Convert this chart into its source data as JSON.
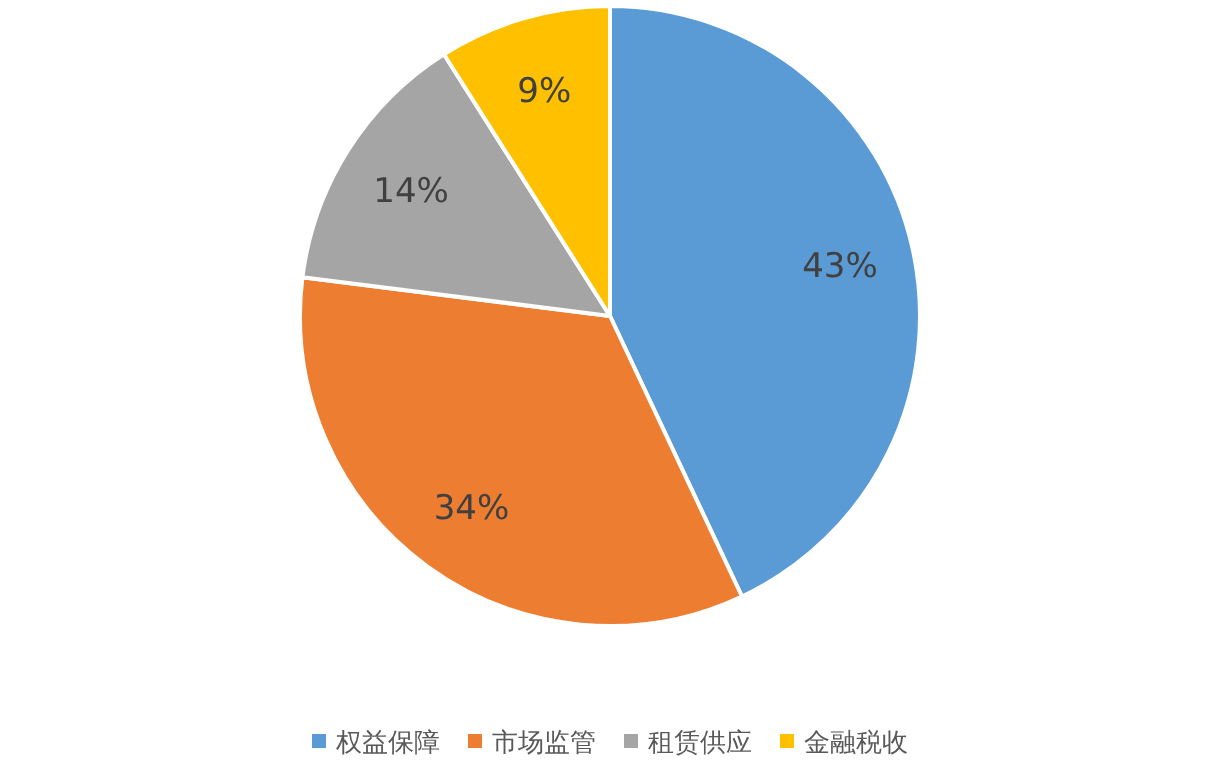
{
  "chart_data": {
    "type": "pie",
    "categories": [
      "权益保障",
      "市场监管",
      "租赁供应",
      "金融税收"
    ],
    "values": [
      43,
      34,
      14,
      9
    ],
    "colors": [
      "#5b9bd5",
      "#ed7d31",
      "#a5a5a5",
      "#ffc000"
    ],
    "value_labels": [
      "43%",
      "34%",
      "14%",
      "9%"
    ],
    "legend": "bottom"
  }
}
